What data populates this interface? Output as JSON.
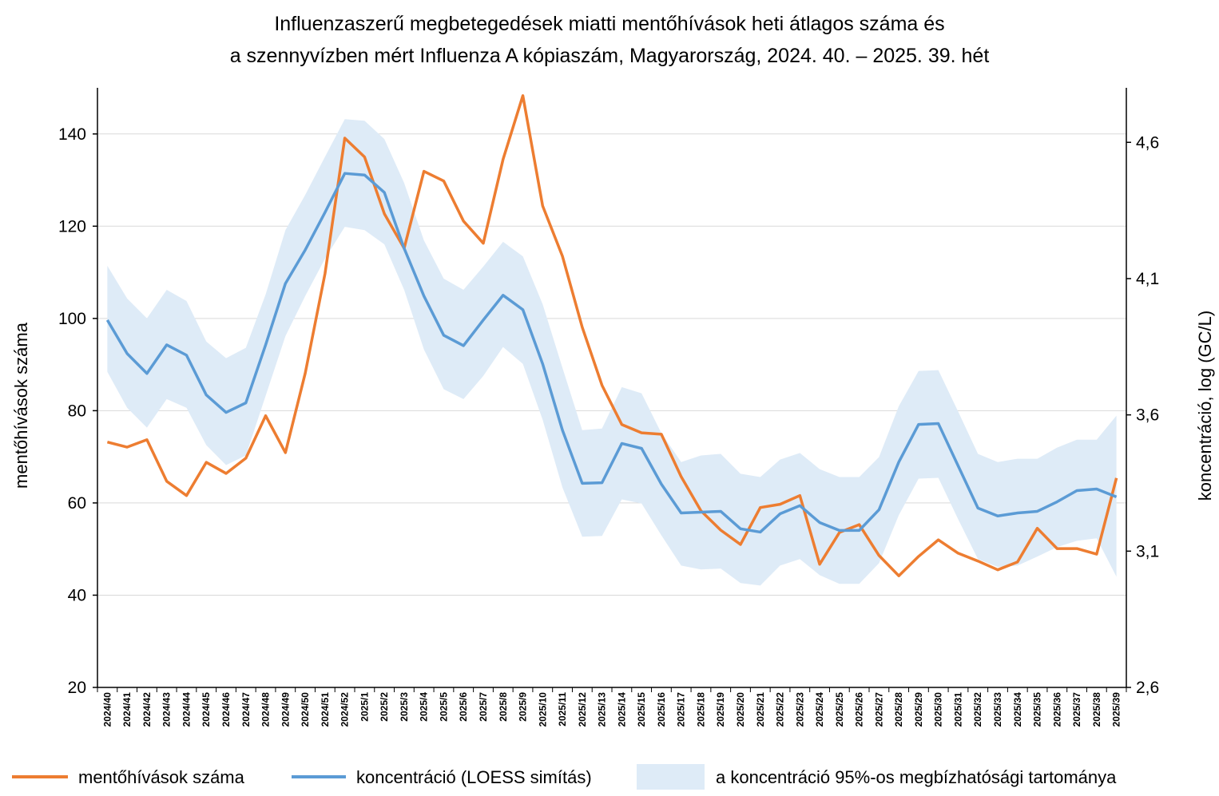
{
  "chart_data": {
    "type": "line",
    "title": [
      "Influenzaszerű megbetegedések miatti mentőhívások heti átlagos száma és",
      "a szennyvízben mért Influenza A kópiaszám, Magyarország, 2024. 40. – 2025. 39. hét"
    ],
    "y_label": "mentőhívások száma",
    "y2_label": "koncentráció, log (GC/L)",
    "categories": [
      "2024/40",
      "2024/41",
      "2024/42",
      "2024/43",
      "2024/44",
      "2024/45",
      "2024/46",
      "2024/47",
      "2024/48",
      "2024/49",
      "2024/50",
      "2024/51",
      "2024/52",
      "2025/1",
      "2025/2",
      "2025/3",
      "2025/4",
      "2025/5",
      "2025/6",
      "2025/7",
      "2025/8",
      "2025/9",
      "2025/10",
      "2025/11",
      "2025/12",
      "2025/13",
      "2025/14",
      "2025/15",
      "2025/16",
      "2025/17",
      "2025/18",
      "2025/19",
      "2025/20",
      "2025/21",
      "2025/22",
      "2025/23",
      "2025/24",
      "2025/25",
      "2025/26",
      "2025/27",
      "2025/28",
      "2025/29",
      "2025/30",
      "2025/31",
      "2025/32",
      "2025/33",
      "2025/34",
      "2025/35",
      "2025/36",
      "2025/37",
      "2025/38",
      "2025/39"
    ],
    "series": [
      {
        "name": "mentőhívások száma",
        "color": "#ed7d31",
        "axis": "y",
        "values": [
          73.2,
          72.1,
          73.7,
          64.7,
          61.6,
          68.8,
          66.4,
          69.7,
          78.9,
          70.9,
          88.1,
          109.7,
          139.1,
          135.0,
          122.7,
          115.2,
          131.9,
          129.8,
          121.1,
          116.3,
          134.5,
          148.3,
          124.4,
          113.5,
          98.1,
          85.5,
          77.0,
          75.2,
          74.9,
          65.7,
          58.3,
          54.1,
          51.0,
          59.0,
          59.7,
          61.6,
          46.7,
          53.6,
          55.3,
          48.6,
          44.2,
          48.4,
          52.0,
          49.1,
          47.4,
          45.5,
          47.2,
          54.5,
          50.1,
          50.1,
          48.9,
          65.4
        ]
      },
      {
        "name": "koncentráció (LOESS simítás)",
        "color": "#5b9bd5",
        "axis": "y2",
        "values": [
          3.948,
          3.825,
          3.752,
          3.857,
          3.819,
          3.673,
          3.609,
          3.644,
          3.857,
          4.082,
          4.205,
          4.343,
          4.486,
          4.48,
          4.416,
          4.211,
          4.036,
          3.892,
          3.854,
          3.948,
          4.039,
          3.986,
          3.787,
          3.544,
          3.349,
          3.351,
          3.495,
          3.477,
          3.346,
          3.24,
          3.243,
          3.246,
          3.182,
          3.17,
          3.237,
          3.267,
          3.205,
          3.176,
          3.176,
          3.252,
          3.427,
          3.565,
          3.568,
          3.413,
          3.258,
          3.229,
          3.24,
          3.246,
          3.281,
          3.322,
          3.328,
          3.299
        ]
      }
    ],
    "band": {
      "name": "a koncentráció 95%-os megbízhatósági tartománya",
      "color": "#deebf7",
      "axis": "y2",
      "lower": [
        3.758,
        3.626,
        3.553,
        3.658,
        3.626,
        3.489,
        3.416,
        3.451,
        3.67,
        3.889,
        4.036,
        4.173,
        4.29,
        4.278,
        4.226,
        4.059,
        3.84,
        3.694,
        3.658,
        3.743,
        3.849,
        3.787,
        3.582,
        3.334,
        3.153,
        3.156,
        3.29,
        3.275,
        3.158,
        3.047,
        3.033,
        3.036,
        2.983,
        2.974,
        3.047,
        3.071,
        3.012,
        2.98,
        2.98,
        3.056,
        3.232,
        3.366,
        3.369,
        3.217,
        3.071,
        3.042,
        3.047,
        3.08,
        3.115,
        3.138,
        3.147,
        3.006
      ],
      "upper": [
        4.147,
        4.027,
        3.954,
        4.059,
        4.018,
        3.869,
        3.808,
        3.846,
        4.042,
        4.278,
        4.407,
        4.547,
        4.685,
        4.679,
        4.612,
        4.451,
        4.24,
        4.1,
        4.059,
        4.144,
        4.235,
        4.182,
        4.006,
        3.773,
        3.544,
        3.55,
        3.702,
        3.679,
        3.533,
        3.427,
        3.451,
        3.457,
        3.384,
        3.372,
        3.436,
        3.46,
        3.401,
        3.372,
        3.372,
        3.445,
        3.632,
        3.761,
        3.764,
        3.612,
        3.457,
        3.427,
        3.439,
        3.439,
        3.48,
        3.509,
        3.509,
        3.597
      ]
    },
    "ylim": [
      20,
      150
    ],
    "yticks": [
      20,
      40,
      60,
      80,
      100,
      120,
      140
    ],
    "y2lim": [
      2.6,
      4.8
    ],
    "y2ticks": [
      {
        "value": 2.6,
        "label": "2,6"
      },
      {
        "value": 3.1,
        "label": "3,1"
      },
      {
        "value": 3.6,
        "label": "3,6"
      },
      {
        "value": 4.1,
        "label": "4,1"
      },
      {
        "value": 4.6,
        "label": "4,6"
      }
    ],
    "grid": true,
    "legend": "bottom"
  }
}
